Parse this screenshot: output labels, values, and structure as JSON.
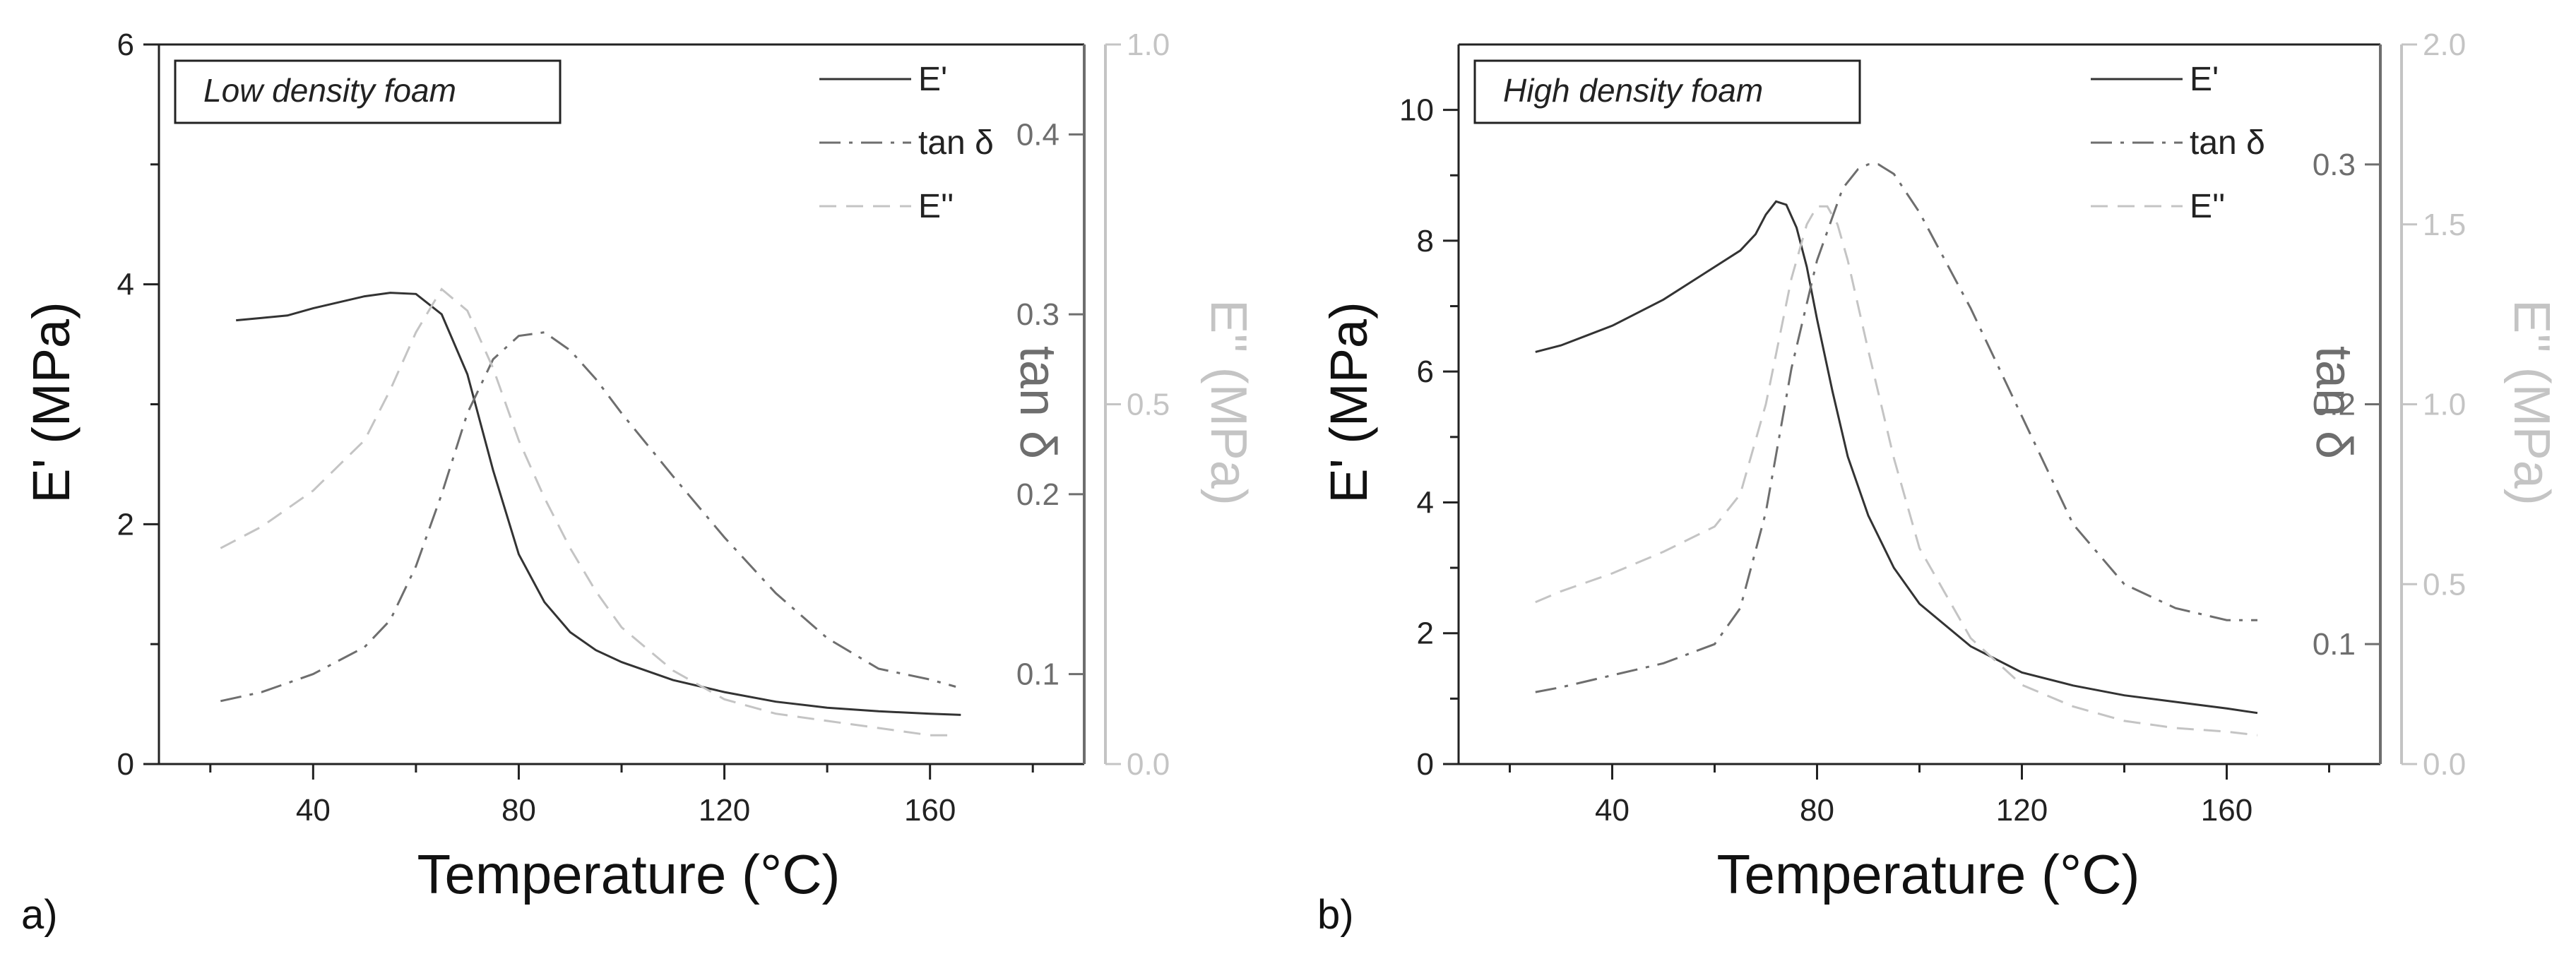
{
  "colors": {
    "e_prime": "#333333",
    "tan_delta": "#6e6e6e",
    "e_double_prime": "#c4c4c4",
    "axis_tan": "#6e6e6e",
    "axis_edp": "#c4c4c4"
  },
  "chart_data": [
    {
      "type": "line",
      "panel_label": "a)",
      "title": "Low density foam",
      "xlabel": "Temperature (°C)",
      "ylabel": "E' (MPa)",
      "ylabel2": "tan δ",
      "ylabel3": "E'' (MPa)",
      "xlim": [
        10,
        190
      ],
      "ylim": [
        0,
        6
      ],
      "ylim2": [
        0.05,
        0.45
      ],
      "ylim3": [
        0,
        1
      ],
      "xticks": [
        40,
        80,
        120,
        160
      ],
      "yticks": [
        0,
        2,
        4,
        6
      ],
      "yticks2": [
        0.1,
        0.2,
        0.3,
        0.4
      ],
      "yticks3": [
        0.0,
        0.5,
        1.0
      ],
      "yticklabels2": [
        "0.1",
        "0.2",
        "0.3",
        "0.4"
      ],
      "yticklabels3": [
        "0.0",
        "0.5",
        "1.0"
      ],
      "legend": [
        "E'",
        "tan δ",
        "E''"
      ],
      "series": [
        {
          "name": "E'",
          "axis": "left",
          "style": "solid",
          "x": [
            25,
            30,
            35,
            40,
            45,
            50,
            55,
            60,
            65,
            70,
            75,
            80,
            85,
            90,
            95,
            100,
            110,
            120,
            130,
            140,
            150,
            160,
            166
          ],
          "values": [
            3.7,
            3.72,
            3.74,
            3.8,
            3.85,
            3.9,
            3.93,
            3.92,
            3.75,
            3.25,
            2.45,
            1.75,
            1.35,
            1.1,
            0.95,
            0.85,
            0.7,
            0.6,
            0.52,
            0.47,
            0.44,
            0.42,
            0.41
          ]
        },
        {
          "name": "tan δ",
          "axis": "right1",
          "style": "dashdot",
          "x": [
            22,
            30,
            40,
            50,
            55,
            60,
            65,
            70,
            75,
            80,
            85,
            90,
            95,
            100,
            110,
            120,
            130,
            140,
            150,
            160,
            165
          ],
          "values": [
            0.085,
            0.09,
            0.1,
            0.115,
            0.13,
            0.16,
            0.2,
            0.245,
            0.275,
            0.288,
            0.29,
            0.28,
            0.264,
            0.245,
            0.21,
            0.176,
            0.145,
            0.12,
            0.103,
            0.097,
            0.093
          ]
        },
        {
          "name": "E''",
          "axis": "right2",
          "style": "dashed",
          "x": [
            22,
            30,
            40,
            50,
            55,
            60,
            65,
            70,
            75,
            80,
            85,
            90,
            95,
            100,
            110,
            120,
            130,
            140,
            150,
            160,
            165
          ],
          "values": [
            0.3,
            0.33,
            0.38,
            0.45,
            0.52,
            0.6,
            0.66,
            0.63,
            0.55,
            0.45,
            0.37,
            0.3,
            0.24,
            0.19,
            0.13,
            0.09,
            0.07,
            0.06,
            0.05,
            0.04,
            0.04
          ]
        }
      ]
    },
    {
      "type": "line",
      "panel_label": "b)",
      "title": "High density foam",
      "xlabel": "Temperature (°C)",
      "ylabel": "E' (MPa)",
      "ylabel2": "tan δ",
      "ylabel3": "E'' (MPa)",
      "xlim": [
        10,
        190
      ],
      "ylim": [
        0,
        11
      ],
      "ylim2": [
        0.05,
        0.35
      ],
      "ylim3": [
        0,
        2
      ],
      "xticks": [
        40,
        80,
        120,
        160
      ],
      "yticks": [
        0,
        2,
        4,
        6,
        8,
        10
      ],
      "yticks2": [
        0.1,
        0.2,
        0.3
      ],
      "yticks3": [
        0.0,
        0.5,
        1.0,
        1.5,
        2.0
      ],
      "yticklabels2": [
        "0.1",
        "0.2",
        "0.3"
      ],
      "yticklabels3": [
        "0.0",
        "0.5",
        "1.0",
        "1.5",
        "2.0"
      ],
      "legend": [
        "E'",
        "tan δ",
        "E''"
      ],
      "series": [
        {
          "name": "E'",
          "axis": "left",
          "style": "solid",
          "x": [
            25,
            30,
            35,
            40,
            45,
            50,
            55,
            60,
            65,
            68,
            70,
            72,
            74,
            76,
            78,
            80,
            83,
            86,
            90,
            95,
            100,
            110,
            120,
            130,
            140,
            150,
            160,
            166
          ],
          "values": [
            6.3,
            6.4,
            6.55,
            6.7,
            6.9,
            7.1,
            7.35,
            7.6,
            7.85,
            8.1,
            8.4,
            8.6,
            8.55,
            8.2,
            7.6,
            6.8,
            5.7,
            4.7,
            3.8,
            3.0,
            2.45,
            1.8,
            1.4,
            1.2,
            1.05,
            0.95,
            0.85,
            0.78
          ]
        },
        {
          "name": "tan δ",
          "axis": "right1",
          "style": "dashdot",
          "x": [
            25,
            30,
            40,
            50,
            60,
            65,
            70,
            75,
            80,
            85,
            88,
            90,
            92,
            95,
            100,
            110,
            120,
            130,
            140,
            150,
            160,
            166
          ],
          "values": [
            0.08,
            0.082,
            0.087,
            0.092,
            0.1,
            0.115,
            0.155,
            0.215,
            0.26,
            0.29,
            0.298,
            0.3,
            0.3,
            0.296,
            0.28,
            0.24,
            0.195,
            0.15,
            0.125,
            0.115,
            0.11,
            0.11
          ]
        },
        {
          "name": "E''",
          "axis": "right2",
          "style": "dashed",
          "x": [
            25,
            30,
            40,
            50,
            60,
            65,
            70,
            75,
            78,
            80,
            82,
            84,
            86,
            90,
            95,
            100,
            110,
            120,
            130,
            140,
            150,
            160,
            166
          ],
          "values": [
            0.45,
            0.48,
            0.53,
            0.59,
            0.66,
            0.75,
            1.0,
            1.35,
            1.5,
            1.55,
            1.55,
            1.5,
            1.4,
            1.15,
            0.85,
            0.6,
            0.35,
            0.22,
            0.16,
            0.12,
            0.1,
            0.09,
            0.08
          ]
        }
      ]
    }
  ]
}
